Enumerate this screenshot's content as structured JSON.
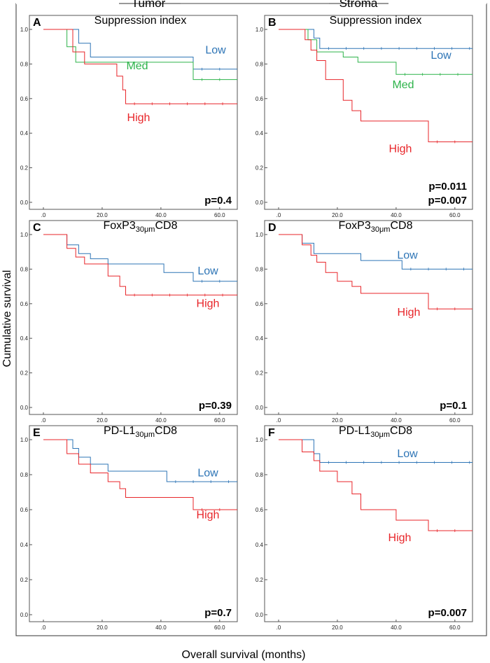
{
  "header": {
    "left": "Tumor",
    "right": "Stroma"
  },
  "axes": {
    "ylabel": "Cumulative survival",
    "xlabel": "Overall survival (months)"
  },
  "chart_data": [
    {
      "id": "A",
      "type": "line",
      "title_main": "Suppression index",
      "title_sub": "",
      "title_tail": "",
      "xlim": [
        0,
        66
      ],
      "ylim": [
        0,
        1.0
      ],
      "x_ticks": [
        ".0",
        "20.0",
        "40.0",
        "60.0"
      ],
      "y_ticks": [
        "0.0",
        "0.2",
        "0.4",
        "0.6",
        "0.8",
        "1.0"
      ],
      "p_values": [
        "p=0.4"
      ],
      "series": [
        {
          "name": "Low",
          "color": "#2e75b6",
          "x": [
            0,
            12,
            12,
            16,
            16,
            51,
            51,
            66
          ],
          "y": [
            1.0,
            1.0,
            0.92,
            0.92,
            0.84,
            0.84,
            0.77,
            0.77
          ]
        },
        {
          "name": "Med",
          "color": "#2db34a",
          "x": [
            0,
            8,
            8,
            11,
            11,
            51,
            51,
            66
          ],
          "y": [
            1.0,
            1.0,
            0.9,
            0.9,
            0.81,
            0.81,
            0.71,
            0.71
          ]
        },
        {
          "name": "High",
          "color": "#e8262a",
          "x": [
            0,
            10,
            10,
            14,
            14,
            25,
            25,
            27,
            27,
            28,
            28,
            66
          ],
          "y": [
            1.0,
            1.0,
            0.87,
            0.87,
            0.8,
            0.8,
            0.73,
            0.73,
            0.65,
            0.65,
            0.57,
            0.57
          ]
        }
      ]
    },
    {
      "id": "B",
      "type": "line",
      "title_main": "Suppression index",
      "title_sub": "",
      "title_tail": "",
      "xlim": [
        0,
        66
      ],
      "ylim": [
        0,
        1.0
      ],
      "x_ticks": [
        ".0",
        "20.0",
        "40.0",
        "60.0"
      ],
      "y_ticks": [
        "0.0",
        "0.2",
        "0.4",
        "0.6",
        "0.8",
        "1.0"
      ],
      "p_values": [
        "p=0.011",
        "p=0.007"
      ],
      "series": [
        {
          "name": "Low",
          "color": "#2e75b6",
          "x": [
            0,
            12,
            12,
            14,
            14,
            66
          ],
          "y": [
            1.0,
            1.0,
            0.95,
            0.95,
            0.89,
            0.89
          ]
        },
        {
          "name": "Med",
          "color": "#2db34a",
          "x": [
            0,
            10,
            10,
            13,
            13,
            22,
            22,
            27,
            27,
            40,
            40,
            66
          ],
          "y": [
            1.0,
            1.0,
            0.94,
            0.94,
            0.87,
            0.87,
            0.84,
            0.84,
            0.81,
            0.81,
            0.74,
            0.74
          ]
        },
        {
          "name": "High",
          "color": "#e8262a",
          "x": [
            0,
            9,
            9,
            11,
            11,
            13,
            13,
            16,
            16,
            22,
            22,
            25,
            25,
            28,
            28,
            51,
            51,
            66
          ],
          "y": [
            1.0,
            1.0,
            0.94,
            0.94,
            0.88,
            0.88,
            0.82,
            0.82,
            0.71,
            0.71,
            0.59,
            0.59,
            0.53,
            0.53,
            0.47,
            0.47,
            0.35,
            0.35
          ]
        }
      ]
    },
    {
      "id": "C",
      "type": "line",
      "title_main": "FoxP3",
      "title_sub": "30μm",
      "title_tail": "CD8",
      "xlim": [
        0,
        66
      ],
      "ylim": [
        0,
        1.0
      ],
      "x_ticks": [
        ".0",
        "20.0",
        "40.0",
        "60.0"
      ],
      "y_ticks": [
        "0.0",
        "0.2",
        "0.4",
        "0.6",
        "0.8",
        "1.0"
      ],
      "p_values": [
        "p=0.39"
      ],
      "series": [
        {
          "name": "Low",
          "color": "#2e75b6",
          "x": [
            0,
            8,
            8,
            12,
            12,
            16,
            16,
            22,
            22,
            41,
            41,
            51,
            51,
            66
          ],
          "y": [
            1.0,
            1.0,
            0.94,
            0.94,
            0.89,
            0.89,
            0.86,
            0.86,
            0.83,
            0.83,
            0.78,
            0.78,
            0.73,
            0.73
          ]
        },
        {
          "name": "High",
          "color": "#e8262a",
          "x": [
            0,
            8,
            8,
            11,
            11,
            14,
            14,
            22,
            22,
            26,
            26,
            28,
            28,
            66
          ],
          "y": [
            1.0,
            1.0,
            0.92,
            0.92,
            0.87,
            0.87,
            0.83,
            0.83,
            0.76,
            0.76,
            0.7,
            0.7,
            0.65,
            0.65
          ]
        }
      ]
    },
    {
      "id": "D",
      "type": "line",
      "title_main": "FoxP3",
      "title_sub": "30μm",
      "title_tail": "CD8",
      "xlim": [
        0,
        66
      ],
      "ylim": [
        0,
        1.0
      ],
      "x_ticks": [
        ".0",
        "20.0",
        "40.0",
        "60.0"
      ],
      "y_ticks": [
        "0.0",
        "0.2",
        "0.4",
        "0.6",
        "0.8",
        "1.0"
      ],
      "p_values": [
        "p=0.1"
      ],
      "series": [
        {
          "name": "Low",
          "color": "#2e75b6",
          "x": [
            0,
            8,
            8,
            12,
            12,
            28,
            28,
            42,
            42,
            66
          ],
          "y": [
            1.0,
            1.0,
            0.95,
            0.95,
            0.89,
            0.89,
            0.85,
            0.85,
            0.8,
            0.8
          ]
        },
        {
          "name": "High",
          "color": "#e8262a",
          "x": [
            0,
            8,
            8,
            11,
            11,
            13,
            13,
            16,
            16,
            20,
            20,
            25,
            25,
            28,
            28,
            51,
            51,
            66
          ],
          "y": [
            1.0,
            1.0,
            0.94,
            0.94,
            0.88,
            0.88,
            0.84,
            0.84,
            0.78,
            0.78,
            0.73,
            0.73,
            0.7,
            0.7,
            0.66,
            0.66,
            0.57,
            0.57
          ]
        }
      ]
    },
    {
      "id": "E",
      "type": "line",
      "title_main": "PD-L1",
      "title_sub": "30μm",
      "title_tail": "CD8",
      "xlim": [
        0,
        66
      ],
      "ylim": [
        0,
        1.0
      ],
      "x_ticks": [
        ".0",
        "20.0",
        "40.0",
        "60.0"
      ],
      "y_ticks": [
        "0.0",
        "0.2",
        "0.4",
        "0.6",
        "0.8",
        "1.0"
      ],
      "p_values": [
        "p=0.7"
      ],
      "series": [
        {
          "name": "Low",
          "color": "#2e75b6",
          "x": [
            0,
            10,
            10,
            12,
            12,
            16,
            16,
            22,
            22,
            42,
            42,
            66
          ],
          "y": [
            1.0,
            1.0,
            0.95,
            0.95,
            0.9,
            0.9,
            0.86,
            0.86,
            0.82,
            0.82,
            0.76,
            0.76
          ]
        },
        {
          "name": "High",
          "color": "#e8262a",
          "x": [
            0,
            8,
            8,
            12,
            12,
            16,
            16,
            22,
            22,
            26,
            26,
            28,
            28,
            51,
            51,
            66
          ],
          "y": [
            1.0,
            1.0,
            0.92,
            0.92,
            0.86,
            0.86,
            0.81,
            0.81,
            0.76,
            0.76,
            0.72,
            0.72,
            0.67,
            0.67,
            0.6,
            0.6
          ]
        }
      ]
    },
    {
      "id": "F",
      "type": "line",
      "title_main": "PD-L1",
      "title_sub": "30μm",
      "title_tail": "CD8",
      "xlim": [
        0,
        66
      ],
      "ylim": [
        0,
        1.0
      ],
      "x_ticks": [
        ".0",
        "20.0",
        "40.0",
        "60.0"
      ],
      "y_ticks": [
        "0.0",
        "0.2",
        "0.4",
        "0.6",
        "0.8",
        "1.0"
      ],
      "p_values": [
        "p=0.007"
      ],
      "series": [
        {
          "name": "Low",
          "color": "#2e75b6",
          "x": [
            0,
            12,
            12,
            14,
            14,
            66
          ],
          "y": [
            1.0,
            1.0,
            0.92,
            0.92,
            0.87,
            0.87
          ]
        },
        {
          "name": "High",
          "color": "#e8262a",
          "x": [
            0,
            8,
            8,
            12,
            12,
            14,
            14,
            20,
            20,
            25,
            25,
            28,
            28,
            40,
            40,
            51,
            51,
            66
          ],
          "y": [
            1.0,
            1.0,
            0.93,
            0.93,
            0.88,
            0.88,
            0.82,
            0.82,
            0.76,
            0.76,
            0.69,
            0.69,
            0.6,
            0.6,
            0.54,
            0.54,
            0.48,
            0.48
          ]
        }
      ]
    }
  ]
}
